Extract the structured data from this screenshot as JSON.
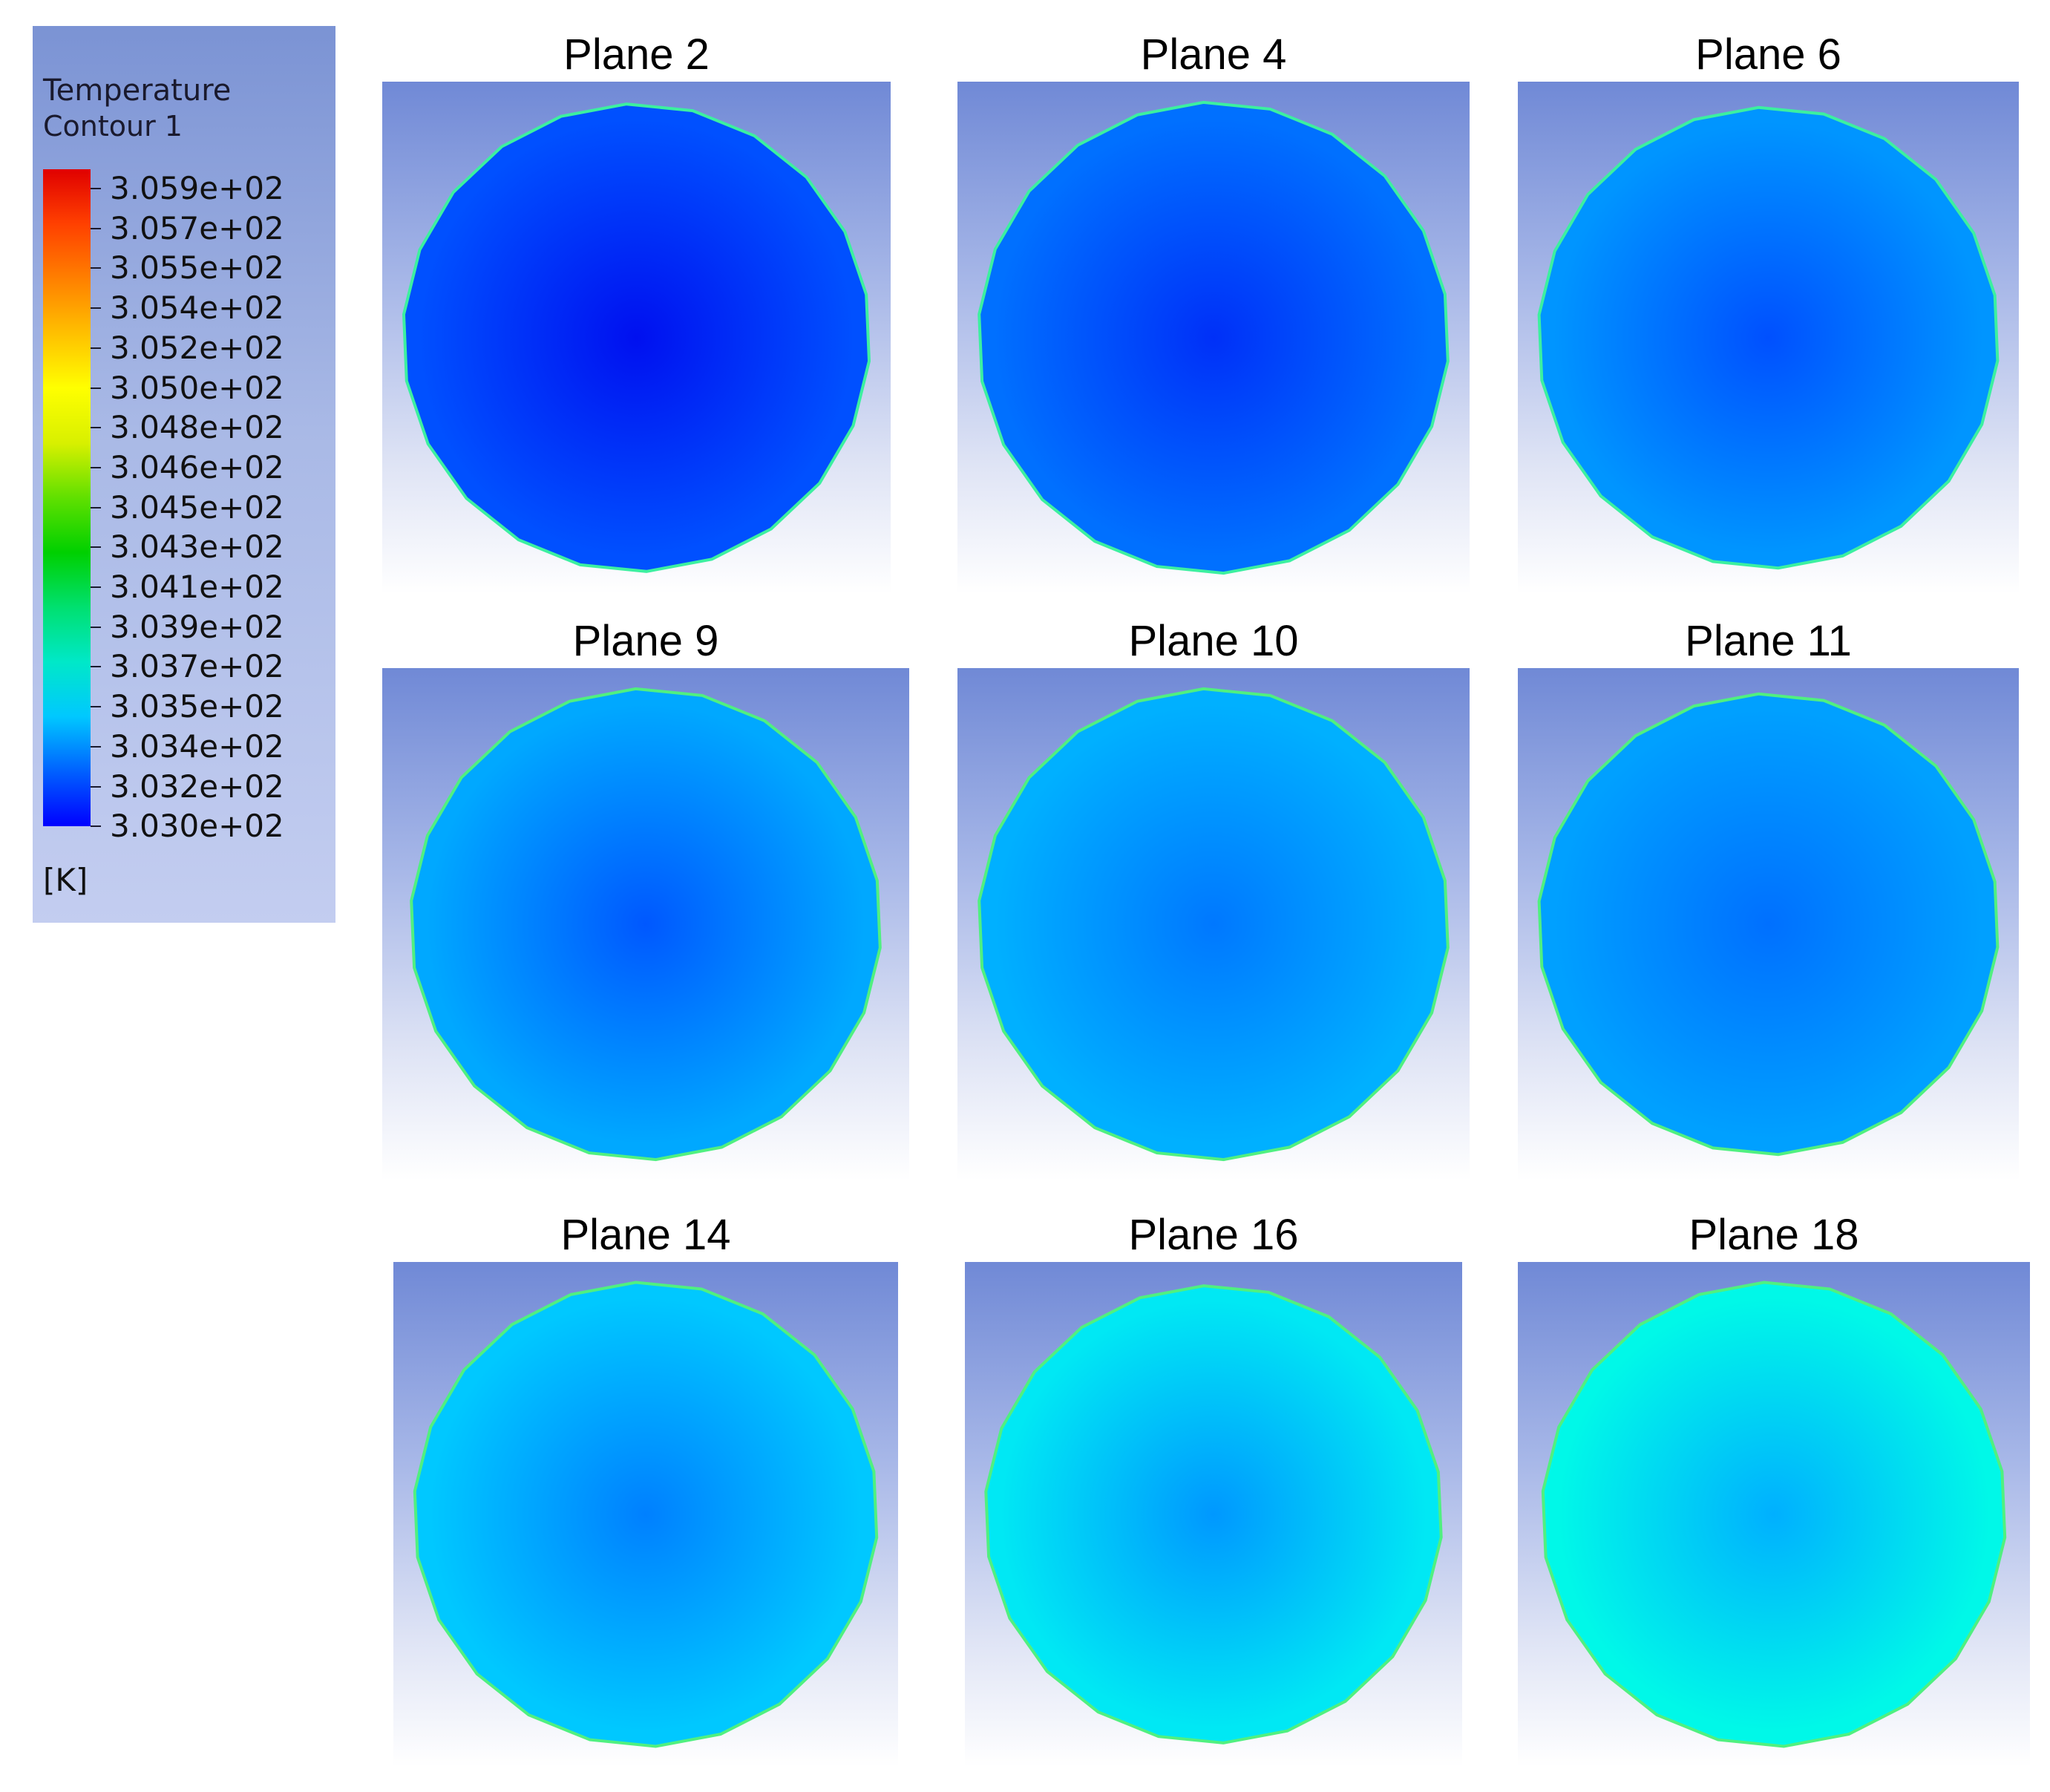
{
  "legend": {
    "title_line1": "Temperature",
    "title_line2": "Contour 1",
    "unit": "[K]",
    "labels": [
      "3.059e+02",
      "3.057e+02",
      "3.055e+02",
      "3.054e+02",
      "3.052e+02",
      "3.050e+02",
      "3.048e+02",
      "3.046e+02",
      "3.045e+02",
      "3.043e+02",
      "3.041e+02",
      "3.039e+02",
      "3.037e+02",
      "3.035e+02",
      "3.034e+02",
      "3.032e+02",
      "3.030e+02"
    ],
    "colormap": [
      "#0000ff",
      "#0060ff",
      "#00c8ff",
      "#00e8c8",
      "#00e070",
      "#00d000",
      "#60e000",
      "#d8f000",
      "#ffff00",
      "#ffc000",
      "#ff8000",
      "#ff4000",
      "#e00000"
    ]
  },
  "planes": [
    {
      "title": "Plane 2",
      "center_color": "#0010f0",
      "edge_color": "#0050ff",
      "rim_color": "#3cf0a0"
    },
    {
      "title": "Plane 4",
      "center_color": "#0030f8",
      "edge_color": "#0070ff",
      "rim_color": "#3cf0a0"
    },
    {
      "title": "Plane 6",
      "center_color": "#0050ff",
      "edge_color": "#0095ff",
      "rim_color": "#3cf0a0"
    },
    {
      "title": "Plane 9",
      "center_color": "#0058ff",
      "edge_color": "#00a8ff",
      "rim_color": "#50f080"
    },
    {
      "title": "Plane 10",
      "center_color": "#0078ff",
      "edge_color": "#00b0ff",
      "rim_color": "#50f080"
    },
    {
      "title": "Plane 11",
      "center_color": "#0070ff",
      "edge_color": "#00a0ff",
      "rim_color": "#50f080"
    },
    {
      "title": "Plane 14",
      "center_color": "#0080ff",
      "edge_color": "#00c8ff",
      "rim_color": "#50f080"
    },
    {
      "title": "Plane 16",
      "center_color": "#0098ff",
      "edge_color": "#00e8f4",
      "rim_color": "#50f080"
    },
    {
      "title": "Plane 18",
      "center_color": "#00b0ff",
      "edge_color": "#00f8e8",
      "rim_color": "#50f080"
    }
  ]
}
